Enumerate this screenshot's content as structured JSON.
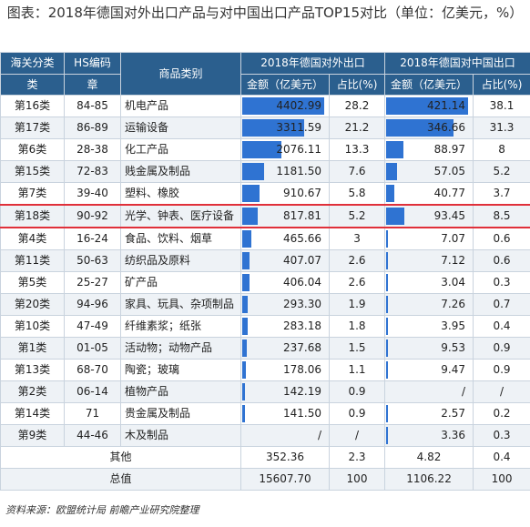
{
  "title": "图表：2018年德国对外出口产品与对中国出口产品TOP15对比（单位：亿美元，%）",
  "headers": {
    "category_top": "海关分类",
    "category_bottom": "类",
    "hs_top": "HS编码",
    "hs_bottom": "章",
    "product": "商品类别",
    "export_world": "2018年德国对外出口",
    "export_china": "2018年德国对中国出口",
    "amount": "金额（亿美元）",
    "share": "占比(%)"
  },
  "rows": [
    {
      "cat": "第16类",
      "hs": "84-85",
      "name": "机电产品",
      "world_amt": "4402.99",
      "world_pct": "28.2",
      "china_amt": "421.14",
      "china_pct": "38.1",
      "world_v": 4402.99,
      "china_v": 421.14
    },
    {
      "cat": "第17类",
      "hs": "86-89",
      "name": "运输设备",
      "world_amt": "3311.59",
      "world_pct": "21.2",
      "china_amt": "346.66",
      "china_pct": "31.3",
      "world_v": 3311.59,
      "china_v": 346.66
    },
    {
      "cat": "第6类",
      "hs": "28-38",
      "name": "化工产品",
      "world_amt": "2076.11",
      "world_pct": "13.3",
      "china_amt": "88.97",
      "china_pct": "8",
      "world_v": 2076.11,
      "china_v": 88.97
    },
    {
      "cat": "第15类",
      "hs": "72-83",
      "name": "贱金属及制品",
      "world_amt": "1181.50",
      "world_pct": "7.6",
      "china_amt": "57.05",
      "china_pct": "5.2",
      "world_v": 1181.5,
      "china_v": 57.05
    },
    {
      "cat": "第7类",
      "hs": "39-40",
      "name": "塑料、橡胶",
      "world_amt": "910.67",
      "world_pct": "5.8",
      "china_amt": "40.77",
      "china_pct": "3.7",
      "world_v": 910.67,
      "china_v": 40.77
    },
    {
      "cat": "第18类",
      "hs": "90-92",
      "name": "光学、钟表、医疗设备",
      "world_amt": "817.81",
      "world_pct": "5.2",
      "china_amt": "93.45",
      "china_pct": "8.5",
      "world_v": 817.81,
      "china_v": 93.45,
      "highlight": true
    },
    {
      "cat": "第4类",
      "hs": "16-24",
      "name": "食品、饮料、烟草",
      "world_amt": "465.66",
      "world_pct": "3",
      "china_amt": "7.07",
      "china_pct": "0.6",
      "world_v": 465.66,
      "china_v": 7.07
    },
    {
      "cat": "第11类",
      "hs": "50-63",
      "name": "纺织品及原料",
      "world_amt": "407.07",
      "world_pct": "2.6",
      "china_amt": "7.12",
      "china_pct": "0.6",
      "world_v": 407.07,
      "china_v": 7.12
    },
    {
      "cat": "第5类",
      "hs": "25-27",
      "name": "矿产品",
      "world_amt": "406.04",
      "world_pct": "2.6",
      "china_amt": "3.04",
      "china_pct": "0.3",
      "world_v": 406.04,
      "china_v": 3.04
    },
    {
      "cat": "第20类",
      "hs": "94-96",
      "name": "家具、玩具、杂项制品",
      "world_amt": "293.30",
      "world_pct": "1.9",
      "china_amt": "7.26",
      "china_pct": "0.7",
      "world_v": 293.3,
      "china_v": 7.26
    },
    {
      "cat": "第10类",
      "hs": "47-49",
      "name": "纤维素浆；纸张",
      "world_amt": "283.18",
      "world_pct": "1.8",
      "china_amt": "3.95",
      "china_pct": "0.4",
      "world_v": 283.18,
      "china_v": 3.95
    },
    {
      "cat": "第1类",
      "hs": "01-05",
      "name": "活动物；动物产品",
      "world_amt": "237.68",
      "world_pct": "1.5",
      "china_amt": "9.53",
      "china_pct": "0.9",
      "world_v": 237.68,
      "china_v": 9.53
    },
    {
      "cat": "第13类",
      "hs": "68-70",
      "name": "陶瓷；玻璃",
      "world_amt": "178.06",
      "world_pct": "1.1",
      "china_amt": "9.47",
      "china_pct": "0.9",
      "world_v": 178.06,
      "china_v": 9.47
    },
    {
      "cat": "第2类",
      "hs": "06-14",
      "name": "植物产品",
      "world_amt": "142.19",
      "world_pct": "0.9",
      "china_amt": "/",
      "china_pct": "/",
      "world_v": 142.19,
      "china_v": 0
    },
    {
      "cat": "第14类",
      "hs": "71",
      "name": "贵金属及制品",
      "world_amt": "141.50",
      "world_pct": "0.9",
      "china_amt": "2.57",
      "china_pct": "0.2",
      "world_v": 141.5,
      "china_v": 2.57
    },
    {
      "cat": "第9类",
      "hs": "44-46",
      "name": "木及制品",
      "world_amt": "/",
      "world_pct": "/",
      "china_amt": "3.36",
      "china_pct": "0.3",
      "world_v": 0,
      "china_v": 3.36
    }
  ],
  "other": {
    "label": "其他",
    "world_amt": "352.36",
    "world_pct": "2.3",
    "china_amt": "4.82",
    "china_pct": "0.4"
  },
  "total": {
    "label": "总值",
    "world_amt": "15607.70",
    "world_pct": "100",
    "china_amt": "1106.22",
    "china_pct": "100"
  },
  "source": "资料来源：欧盟统计局 前瞻产业研究院整理",
  "colors": {
    "header_bg": "#2b5f8e",
    "bar": "#2f73d2",
    "highlight_border": "#e0303a"
  }
}
